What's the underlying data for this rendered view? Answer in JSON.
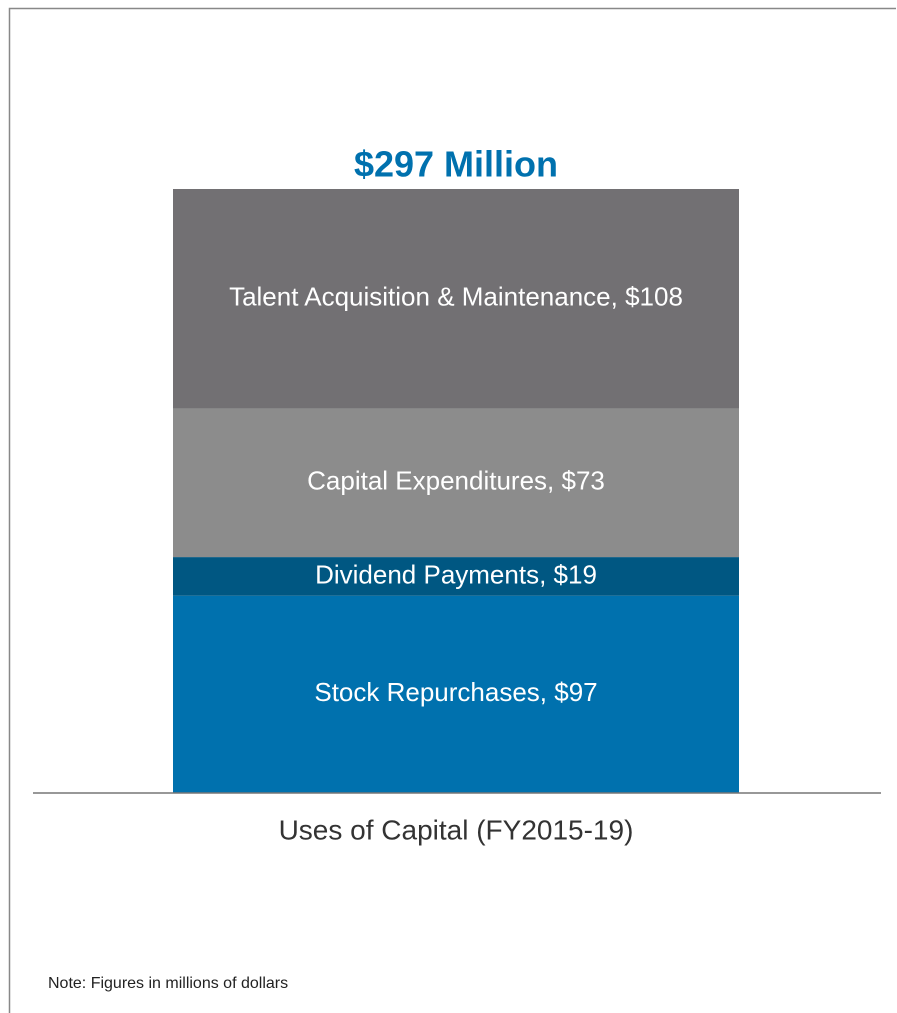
{
  "chart_data": {
    "type": "stacked_bar",
    "title": "$297 Million",
    "categories": [
      "Uses of Capital (FY2015-19)"
    ],
    "series": [
      {
        "color": "#0071ae",
        "values": [
          97
        ],
        "value_labels": [
          "Stock Repurchases, $97"
        ]
      },
      {
        "color": "#005782",
        "values": [
          19
        ],
        "value_labels": [
          "Dividend Payments, $19"
        ]
      },
      {
        "color": "#8c8c8c",
        "values": [
          73
        ],
        "value_labels": [
          "Capital Expenditures, $73"
        ]
      },
      {
        "color": "#727073",
        "values": [
          108
        ],
        "value_labels": [
          "Talent Acquisition & Maintenance, $108"
        ]
      }
    ],
    "note": "Note: Figures in millions of dollars"
  }
}
